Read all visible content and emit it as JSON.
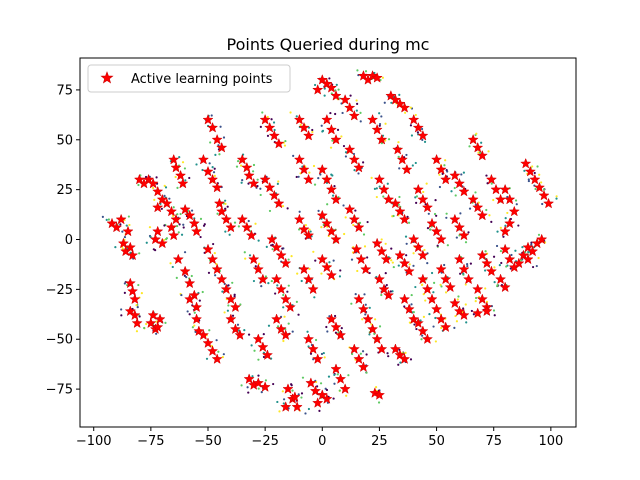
{
  "chart_data": {
    "type": "scatter",
    "title": "Points Queried during mc",
    "xlabel": "",
    "ylabel": "",
    "xlim": [
      -106,
      111
    ],
    "ylim": [
      -94,
      91
    ],
    "xticks": [
      -100,
      -75,
      -50,
      -25,
      0,
      25,
      50,
      75,
      100
    ],
    "yticks": [
      -75,
      -50,
      -25,
      0,
      25,
      50,
      75
    ],
    "xtick_labels": [
      "−100",
      "−75",
      "−50",
      "−25",
      "0",
      "25",
      "50",
      "75",
      "100"
    ],
    "ytick_labels": [
      "−75",
      "−50",
      "−25",
      "0",
      "25",
      "50",
      "75"
    ],
    "grid": false,
    "legend_position": "top-left",
    "colors": {
      "active_marker": "#ff0000",
      "active_edge": "#cc0000",
      "class_colors": [
        "#440154",
        "#3b528b",
        "#21918c",
        "#5ec962",
        "#fde725"
      ]
    },
    "series": [
      {
        "name": "Active learning points",
        "marker": "star",
        "color": "#ff0000",
        "points": [
          [
            -92,
            8
          ],
          [
            -90,
            6
          ],
          [
            -88,
            10
          ],
          [
            -85,
            4
          ],
          [
            -87,
            -2
          ],
          [
            -86,
            -6
          ],
          [
            -84,
            -4
          ],
          [
            -83,
            -8
          ],
          [
            -84,
            -22
          ],
          [
            -83,
            -26
          ],
          [
            -82,
            -30
          ],
          [
            -84,
            -36
          ],
          [
            -82,
            -38
          ],
          [
            -81,
            -42
          ],
          [
            -76,
            30
          ],
          [
            -74,
            28
          ],
          [
            -72,
            24
          ],
          [
            -70,
            20
          ],
          [
            -72,
            16
          ],
          [
            -78,
            28
          ],
          [
            -80,
            30
          ],
          [
            -73,
            0
          ],
          [
            -72,
            4
          ],
          [
            -70,
            -2
          ],
          [
            -75,
            -42
          ],
          [
            -73,
            -45
          ],
          [
            -71,
            -40
          ],
          [
            -74,
            -38
          ],
          [
            -72,
            -44
          ],
          [
            -65,
            40
          ],
          [
            -64,
            36
          ],
          [
            -62,
            32
          ],
          [
            -61,
            28
          ],
          [
            -68,
            18
          ],
          [
            -66,
            14
          ],
          [
            -64,
            10
          ],
          [
            -66,
            6
          ],
          [
            -65,
            2
          ],
          [
            -60,
            15
          ],
          [
            -58,
            12
          ],
          [
            -56,
            8
          ],
          [
            -55,
            4
          ],
          [
            -63,
            -10
          ],
          [
            -60,
            -16
          ],
          [
            -58,
            -22
          ],
          [
            -56,
            -28
          ],
          [
            -55,
            -34
          ],
          [
            -58,
            -30
          ],
          [
            -55,
            -40
          ],
          [
            -54,
            -46
          ],
          [
            -52,
            -48
          ],
          [
            -50,
            -52
          ],
          [
            -48,
            -56
          ],
          [
            -46,
            -60
          ],
          [
            -50,
            60
          ],
          [
            -48,
            56
          ],
          [
            -46,
            50
          ],
          [
            -44,
            46
          ],
          [
            -52,
            40
          ],
          [
            -50,
            34
          ],
          [
            -48,
            30
          ],
          [
            -46,
            26
          ],
          [
            -45,
            18
          ],
          [
            -44,
            14
          ],
          [
            -42,
            10
          ],
          [
            -40,
            6
          ],
          [
            -50,
            -5
          ],
          [
            -48,
            -10
          ],
          [
            -46,
            -15
          ],
          [
            -44,
            -20
          ],
          [
            -42,
            -25
          ],
          [
            -40,
            -30
          ],
          [
            -38,
            -34
          ],
          [
            -40,
            -40
          ],
          [
            -38,
            -45
          ],
          [
            -36,
            -48
          ],
          [
            -35,
            40
          ],
          [
            -33,
            36
          ],
          [
            -32,
            32
          ],
          [
            -30,
            28
          ],
          [
            -35,
            10
          ],
          [
            -33,
            6
          ],
          [
            -31,
            2
          ],
          [
            -30,
            -10
          ],
          [
            -28,
            -15
          ],
          [
            -26,
            -20
          ],
          [
            -28,
            -50
          ],
          [
            -26,
            -54
          ],
          [
            -24,
            -58
          ],
          [
            -32,
            -70
          ],
          [
            -30,
            -73
          ],
          [
            -28,
            -72
          ],
          [
            -25,
            -74
          ],
          [
            -25,
            60
          ],
          [
            -23,
            56
          ],
          [
            -21,
            52
          ],
          [
            -19,
            48
          ],
          [
            -25,
            30
          ],
          [
            -23,
            26
          ],
          [
            -21,
            22
          ],
          [
            -19,
            18
          ],
          [
            -22,
            0
          ],
          [
            -20,
            -4
          ],
          [
            -18,
            -8
          ],
          [
            -16,
            -12
          ],
          [
            -20,
            -20
          ],
          [
            -18,
            -25
          ],
          [
            -16,
            -30
          ],
          [
            -14,
            -34
          ],
          [
            -20,
            -40
          ],
          [
            -18,
            -45
          ],
          [
            -16,
            -48
          ],
          [
            -15,
            -75
          ],
          [
            -13,
            -80
          ],
          [
            -11,
            -84
          ],
          [
            -16,
            -84
          ],
          [
            -12,
            -79
          ],
          [
            -10,
            60
          ],
          [
            -8,
            56
          ],
          [
            -6,
            52
          ],
          [
            -10,
            40
          ],
          [
            -8,
            35
          ],
          [
            -6,
            30
          ],
          [
            -10,
            10
          ],
          [
            -8,
            5
          ],
          [
            -6,
            2
          ],
          [
            -8,
            -15
          ],
          [
            -6,
            -20
          ],
          [
            -4,
            -25
          ],
          [
            -6,
            -50
          ],
          [
            -4,
            -55
          ],
          [
            -2,
            -60
          ],
          [
            -5,
            -72
          ],
          [
            -3,
            -76
          ],
          [
            0,
            -78
          ],
          [
            -2,
            -82
          ],
          [
            2,
            -80
          ],
          [
            0,
            80
          ],
          [
            2,
            78
          ],
          [
            4,
            76
          ],
          [
            -2,
            75
          ],
          [
            6,
            72
          ],
          [
            2,
            60
          ],
          [
            4,
            55
          ],
          [
            6,
            50
          ],
          [
            0,
            35
          ],
          [
            2,
            30
          ],
          [
            4,
            25
          ],
          [
            6,
            20
          ],
          [
            0,
            12
          ],
          [
            2,
            8
          ],
          [
            4,
            4
          ],
          [
            6,
            0
          ],
          [
            0,
            -10
          ],
          [
            2,
            -14
          ],
          [
            4,
            -18
          ],
          [
            4,
            -40
          ],
          [
            6,
            -44
          ],
          [
            8,
            -48
          ],
          [
            6,
            -65
          ],
          [
            8,
            -70
          ],
          [
            10,
            -75
          ],
          [
            10,
            70
          ],
          [
            12,
            66
          ],
          [
            14,
            62
          ],
          [
            12,
            45
          ],
          [
            14,
            40
          ],
          [
            16,
            36
          ],
          [
            12,
            15
          ],
          [
            14,
            10
          ],
          [
            16,
            6
          ],
          [
            15,
            -5
          ],
          [
            17,
            -10
          ],
          [
            19,
            -15
          ],
          [
            16,
            -30
          ],
          [
            18,
            -35
          ],
          [
            20,
            -40
          ],
          [
            14,
            -55
          ],
          [
            16,
            -60
          ],
          [
            18,
            -64
          ],
          [
            18,
            82
          ],
          [
            20,
            80
          ],
          [
            22,
            82
          ],
          [
            24,
            81
          ],
          [
            22,
            60
          ],
          [
            24,
            55
          ],
          [
            26,
            50
          ],
          [
            25,
            30
          ],
          [
            27,
            25
          ],
          [
            29,
            20
          ],
          [
            24,
            -2
          ],
          [
            26,
            -6
          ],
          [
            28,
            -10
          ],
          [
            25,
            -20
          ],
          [
            27,
            -25
          ],
          [
            29,
            -28
          ],
          [
            22,
            -45
          ],
          [
            24,
            -50
          ],
          [
            26,
            -55
          ],
          [
            23,
            -77
          ],
          [
            25,
            -78
          ],
          [
            30,
            72
          ],
          [
            32,
            70
          ],
          [
            34,
            68
          ],
          [
            36,
            66
          ],
          [
            33,
            45
          ],
          [
            35,
            40
          ],
          [
            37,
            35
          ],
          [
            32,
            18
          ],
          [
            34,
            14
          ],
          [
            36,
            10
          ],
          [
            34,
            -8
          ],
          [
            36,
            -12
          ],
          [
            38,
            -16
          ],
          [
            36,
            -30
          ],
          [
            38,
            -35
          ],
          [
            40,
            -40
          ],
          [
            32,
            -55
          ],
          [
            34,
            -58
          ],
          [
            36,
            -60
          ],
          [
            40,
            60
          ],
          [
            42,
            56
          ],
          [
            44,
            52
          ],
          [
            42,
            25
          ],
          [
            44,
            20
          ],
          [
            46,
            16
          ],
          [
            40,
            0
          ],
          [
            42,
            -4
          ],
          [
            44,
            -8
          ],
          [
            44,
            -20
          ],
          [
            46,
            -25
          ],
          [
            48,
            -30
          ],
          [
            42,
            -42
          ],
          [
            44,
            -46
          ],
          [
            46,
            -50
          ],
          [
            50,
            40
          ],
          [
            52,
            35
          ],
          [
            54,
            30
          ],
          [
            48,
            8
          ],
          [
            50,
            4
          ],
          [
            52,
            0
          ],
          [
            52,
            -15
          ],
          [
            54,
            -20
          ],
          [
            56,
            -24
          ],
          [
            50,
            -35
          ],
          [
            52,
            -40
          ],
          [
            54,
            -44
          ],
          [
            58,
            32
          ],
          [
            60,
            28
          ],
          [
            62,
            24
          ],
          [
            58,
            10
          ],
          [
            60,
            6
          ],
          [
            62,
            2
          ],
          [
            60,
            -10
          ],
          [
            62,
            -15
          ],
          [
            64,
            -20
          ],
          [
            58,
            -32
          ],
          [
            60,
            -36
          ],
          [
            62,
            -38
          ],
          [
            66,
            50
          ],
          [
            68,
            46
          ],
          [
            70,
            42
          ],
          [
            66,
            20
          ],
          [
            68,
            16
          ],
          [
            70,
            12
          ],
          [
            70,
            -8
          ],
          [
            72,
            -12
          ],
          [
            74,
            -16
          ],
          [
            68,
            -25
          ],
          [
            70,
            -30
          ],
          [
            72,
            -34
          ],
          [
            72,
            -36
          ],
          [
            68,
            -37
          ],
          [
            74,
            30
          ],
          [
            76,
            25
          ],
          [
            78,
            20
          ],
          [
            80,
            25
          ],
          [
            82,
            20
          ],
          [
            84,
            14
          ],
          [
            82,
            8
          ],
          [
            80,
            4
          ],
          [
            80,
            -5
          ],
          [
            82,
            -10
          ],
          [
            84,
            -14
          ],
          [
            78,
            -20
          ],
          [
            80,
            -24
          ],
          [
            86,
            -12
          ],
          [
            88,
            -8
          ],
          [
            90,
            -4
          ],
          [
            89,
            38
          ],
          [
            91,
            34
          ],
          [
            93,
            30
          ],
          [
            95,
            26
          ],
          [
            97,
            22
          ],
          [
            99,
            18
          ],
          [
            90,
            -10
          ],
          [
            92,
            -6
          ],
          [
            94,
            -2
          ],
          [
            96,
            0
          ]
        ]
      }
    ]
  }
}
